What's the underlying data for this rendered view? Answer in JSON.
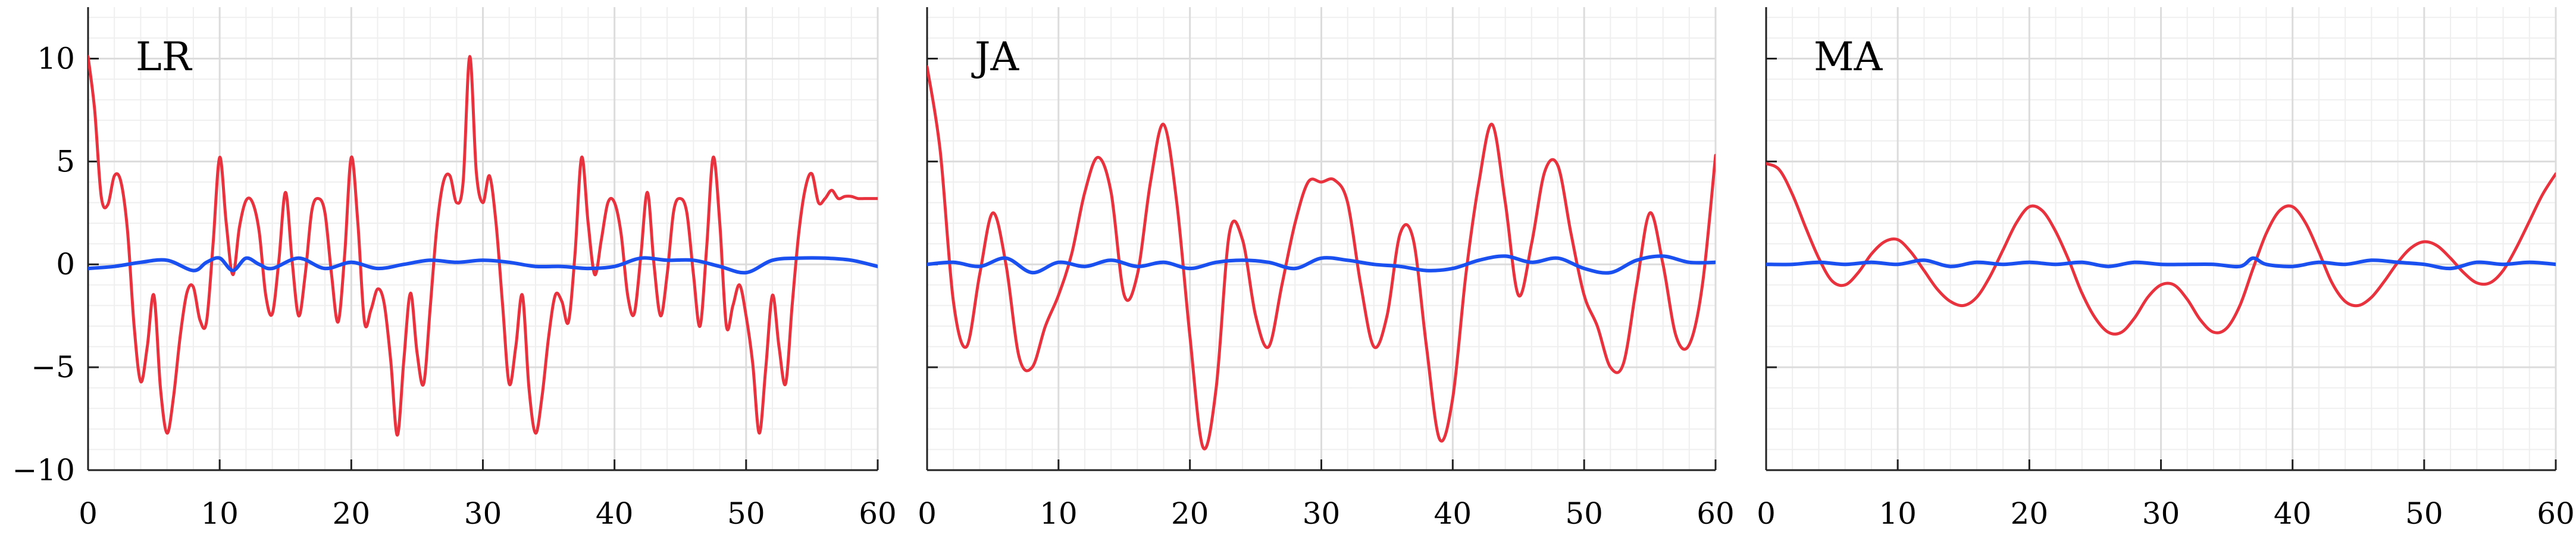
{
  "colors": {
    "red_series": "#e8333f",
    "blue_series": "#1a4ff0",
    "grid_major": "#dcdcdc",
    "grid_minor": "#efefef",
    "axis": "#222222"
  },
  "chart_data": [
    {
      "type": "line",
      "title": "LR",
      "xlim": [
        0,
        60
      ],
      "ylim": [
        -10,
        12.5
      ],
      "xticks": [
        0,
        10,
        20,
        30,
        40,
        50,
        60
      ],
      "yticks": [
        -10,
        -5,
        0,
        5,
        10
      ],
      "grid": true,
      "series": [
        {
          "color": "#e8333f",
          "x": [
            0,
            0.5,
            1,
            1.5,
            2,
            2.5,
            3,
            3.5,
            4,
            4.5,
            5,
            5.5,
            6,
            6.5,
            7,
            7.5,
            8,
            8.5,
            9,
            9.5,
            10,
            10.5,
            11,
            11.5,
            12,
            12.5,
            13,
            13.5,
            14,
            14.5,
            15,
            15.5,
            16,
            16.5,
            17,
            17.5,
            18,
            18.5,
            19,
            19.5,
            20,
            20.5,
            21,
            21.5,
            22,
            22.5,
            23,
            23.5,
            24,
            24.5,
            25,
            25.5,
            26,
            26.5,
            27,
            27.5,
            28,
            28.5,
            29,
            29.5,
            30,
            30.5,
            31,
            31.5,
            32,
            32.5,
            33,
            33.5,
            34,
            34.5,
            35,
            35.5,
            36,
            36.5,
            37,
            37.5,
            38,
            38.5,
            39,
            39.5,
            40,
            40.5,
            41,
            41.5,
            42,
            42.5,
            43,
            43.5,
            44,
            44.5,
            45,
            45.5,
            46,
            46.5,
            47,
            47.5,
            48,
            48.5,
            49,
            49.5,
            50,
            50.5,
            51,
            51.5,
            52,
            52.5,
            53,
            53.5,
            54,
            54.5,
            55,
            55.5,
            56,
            56.5,
            57,
            57.5,
            58,
            58.5,
            59,
            59.5,
            60
          ],
          "y": [
            10.1,
            7.5,
            3.3,
            2.9,
            4.3,
            4.0,
            1.6,
            -3.0,
            -5.7,
            -4.0,
            -1.5,
            -6.0,
            -8.2,
            -6.4,
            -3.5,
            -1.4,
            -1.1,
            -2.7,
            -2.8,
            1.0,
            5.2,
            2.0,
            -0.5,
            1.8,
            3.1,
            3.0,
            1.6,
            -1.5,
            -2.4,
            0.2,
            3.5,
            0.2,
            -2.5,
            -0.5,
            2.6,
            3.2,
            2.5,
            -0.5,
            -2.8,
            0.5,
            5.2,
            2.0,
            -2.8,
            -2.2,
            -1.2,
            -1.9,
            -4.7,
            -8.3,
            -4.6,
            -1.4,
            -4.3,
            -5.8,
            -2.1,
            1.8,
            4.0,
            4.3,
            3.0,
            4.0,
            10.1,
            4.5,
            3.0,
            4.3,
            2.0,
            -2.0,
            -5.8,
            -4.0,
            -1.5,
            -6.0,
            -8.2,
            -6.4,
            -3.5,
            -1.5,
            -1.8,
            -2.8,
            0.5,
            5.2,
            2.0,
            -0.5,
            1.2,
            3.0,
            3.0,
            1.5,
            -1.5,
            -2.4,
            0.4,
            3.5,
            0.0,
            -2.5,
            -0.5,
            2.6,
            3.2,
            2.5,
            -0.5,
            -3.0,
            0.8,
            5.2,
            2.0,
            -3.0,
            -2.0,
            -1.0,
            -2.5,
            -4.8,
            -8.2,
            -5.0,
            -1.5,
            -4.0,
            -5.8,
            -2.0,
            1.5,
            3.7,
            4.4,
            3.0,
            3.2,
            3.6,
            3.2,
            3.3,
            3.3,
            3.2,
            3.2,
            3.2,
            3.2
          ],
          "values_note": ""
        },
        {
          "color": "#1a4ff0",
          "x": [
            0,
            2,
            4,
            6,
            8,
            9,
            10,
            11,
            12,
            13,
            14,
            16,
            18,
            20,
            22,
            24,
            26,
            28,
            30,
            32,
            34,
            36,
            38,
            40,
            42,
            44,
            46,
            48,
            50,
            52,
            54,
            56,
            58,
            60
          ],
          "y": [
            -0.2,
            -0.1,
            0.1,
            0.2,
            -0.3,
            0.1,
            0.3,
            -0.3,
            0.3,
            0.0,
            -0.2,
            0.3,
            -0.2,
            0.1,
            -0.2,
            0.0,
            0.2,
            0.1,
            0.2,
            0.1,
            -0.1,
            -0.1,
            -0.2,
            -0.1,
            0.3,
            0.2,
            0.2,
            -0.1,
            -0.4,
            0.2,
            0.3,
            0.3,
            0.2,
            -0.1
          ]
        }
      ]
    },
    {
      "type": "line",
      "title": "JA",
      "xlim": [
        0,
        60
      ],
      "ylim": [
        -10,
        12.5
      ],
      "xticks": [
        0,
        10,
        20,
        30,
        40,
        50,
        60
      ],
      "yticks": [
        -10,
        -5,
        0,
        5,
        10
      ],
      "grid": true,
      "series": [
        {
          "color": "#e8333f",
          "x": [
            0,
            1,
            2,
            3,
            4,
            5,
            6,
            7,
            8,
            9,
            10,
            11,
            12,
            13,
            14,
            15,
            16,
            17,
            18,
            19,
            20,
            21,
            22,
            23,
            24,
            25,
            26,
            27,
            28,
            29,
            30,
            31,
            32,
            33,
            34,
            35,
            36,
            37,
            38,
            39,
            40,
            41,
            42,
            43,
            44,
            45,
            46,
            47,
            48,
            49,
            50,
            51,
            52,
            53,
            54,
            55,
            56,
            57,
            58,
            59,
            60
          ],
          "y": [
            9.6,
            5.5,
            -1.8,
            -4.0,
            -0.5,
            2.5,
            0.0,
            -4.5,
            -5.0,
            -3.0,
            -1.5,
            0.5,
            3.5,
            5.2,
            3.5,
            -1.5,
            -0.5,
            4.0,
            6.8,
            3.0,
            -3.5,
            -8.9,
            -6.0,
            1.5,
            1.2,
            -2.5,
            -4.0,
            -1.0,
            2.0,
            4.0,
            4.0,
            4.1,
            3.0,
            -1.0,
            -4.0,
            -2.5,
            1.5,
            1.2,
            -4.0,
            -8.5,
            -6.5,
            -0.5,
            4.0,
            6.8,
            3.0,
            -1.5,
            1.0,
            4.5,
            4.8,
            1.5,
            -1.5,
            -3.0,
            -5.0,
            -4.8,
            -1.0,
            2.5,
            0.0,
            -3.5,
            -3.9,
            -1.0,
            5.3
          ]
        },
        {
          "color": "#1a4ff0",
          "x": [
            0,
            2,
            4,
            6,
            8,
            10,
            12,
            14,
            16,
            18,
            20,
            22,
            24,
            26,
            28,
            30,
            32,
            34,
            36,
            38,
            40,
            42,
            44,
            46,
            48,
            50,
            52,
            54,
            56,
            58,
            60
          ],
          "y": [
            0.0,
            0.1,
            -0.1,
            0.3,
            -0.4,
            0.1,
            -0.1,
            0.2,
            -0.1,
            0.1,
            -0.2,
            0.1,
            0.2,
            0.1,
            -0.2,
            0.3,
            0.2,
            0.0,
            -0.1,
            -0.3,
            -0.2,
            0.2,
            0.4,
            0.1,
            0.3,
            -0.2,
            -0.4,
            0.2,
            0.4,
            0.1,
            0.1
          ]
        }
      ]
    },
    {
      "type": "line",
      "title": "MA",
      "xlim": [
        0,
        60
      ],
      "ylim": [
        -10,
        12.5
      ],
      "xticks": [
        0,
        10,
        20,
        30,
        40,
        50,
        60
      ],
      "yticks": [
        -10,
        -5,
        0,
        5,
        10
      ],
      "grid": true,
      "series": [
        {
          "color": "#e8333f",
          "x": [
            0,
            1,
            2,
            3,
            4,
            5,
            6,
            7,
            8,
            9,
            10,
            11,
            12,
            13,
            14,
            15,
            16,
            17,
            18,
            19,
            20,
            21,
            22,
            23,
            24,
            25,
            26,
            27,
            28,
            29,
            30,
            31,
            32,
            33,
            34,
            35,
            36,
            37,
            38,
            39,
            40,
            41,
            42,
            43,
            44,
            45,
            46,
            47,
            48,
            49,
            50,
            51,
            52,
            53,
            54,
            55,
            56,
            57,
            58,
            59,
            60
          ],
          "y": [
            4.9,
            4.6,
            3.4,
            1.8,
            0.3,
            -0.8,
            -1.0,
            -0.4,
            0.5,
            1.1,
            1.2,
            0.6,
            -0.3,
            -1.2,
            -1.8,
            -2.0,
            -1.6,
            -0.6,
            0.7,
            2.0,
            2.8,
            2.6,
            1.6,
            0.2,
            -1.4,
            -2.6,
            -3.3,
            -3.3,
            -2.6,
            -1.6,
            -1.0,
            -1.0,
            -1.7,
            -2.7,
            -3.3,
            -3.1,
            -2.0,
            -0.2,
            1.5,
            2.6,
            2.8,
            2.0,
            0.6,
            -0.9,
            -1.8,
            -2.0,
            -1.6,
            -0.8,
            0.1,
            0.8,
            1.1,
            0.9,
            0.3,
            -0.4,
            -0.9,
            -0.9,
            -0.3,
            0.8,
            2.1,
            3.4,
            4.4
          ]
        },
        {
          "color": "#1a4ff0",
          "x": [
            0,
            2,
            4,
            6,
            8,
            10,
            12,
            14,
            16,
            18,
            20,
            22,
            24,
            26,
            28,
            30,
            32,
            34,
            36,
            37,
            38,
            40,
            42,
            44,
            46,
            48,
            50,
            52,
            54,
            56,
            58,
            60
          ],
          "y": [
            0.0,
            0.0,
            0.1,
            0.0,
            0.1,
            0.0,
            0.2,
            -0.1,
            0.1,
            0.0,
            0.1,
            0.0,
            0.1,
            -0.1,
            0.1,
            0.0,
            0.0,
            0.0,
            -0.1,
            0.3,
            0.0,
            -0.1,
            0.1,
            0.0,
            0.2,
            0.1,
            0.0,
            -0.2,
            0.1,
            0.0,
            0.1,
            0.0
          ]
        }
      ]
    }
  ]
}
